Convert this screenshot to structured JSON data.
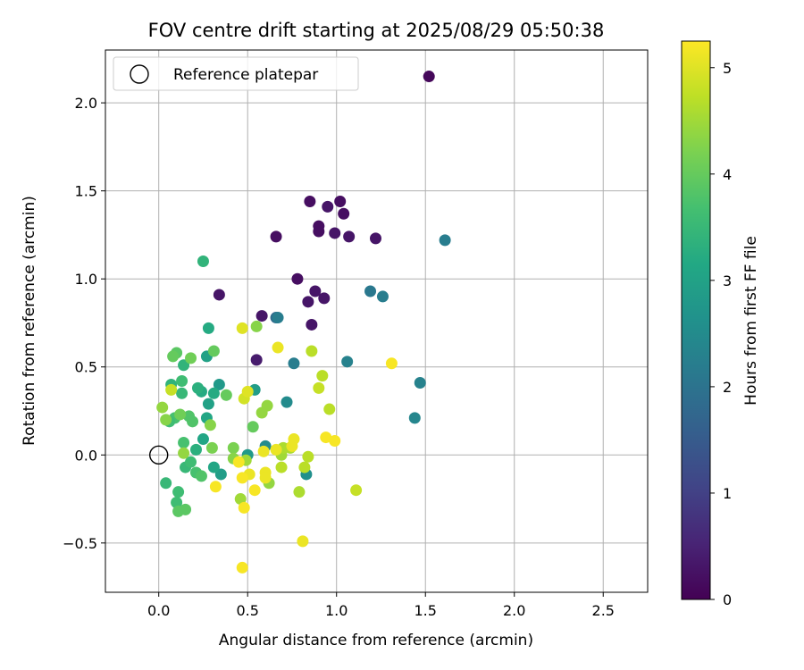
{
  "chart_data": {
    "type": "scatter",
    "title": "FOV centre drift starting at 2025/08/29 05:50:38",
    "xlabel": "Angular distance from reference (arcmin)",
    "ylabel": "Rotation from reference (arcmin)",
    "xlim": [
      -0.3,
      2.75
    ],
    "ylim": [
      -0.78,
      2.3
    ],
    "xticks": [
      0.0,
      0.5,
      1.0,
      1.5,
      2.0,
      2.5
    ],
    "xtick_labels": [
      "0.0",
      "0.5",
      "1.0",
      "1.5",
      "2.0",
      "2.5"
    ],
    "yticks": [
      -0.5,
      0.0,
      0.5,
      1.0,
      1.5,
      2.0
    ],
    "ytick_labels": [
      "−0.5",
      "0.0",
      "0.5",
      "1.0",
      "1.5",
      "2.0"
    ],
    "grid": true,
    "legend": {
      "placement": "upper-left",
      "entries": [
        "Reference platepar"
      ]
    },
    "reference_point": {
      "x": 0.0,
      "y": 0.0
    },
    "colorbar": {
      "label": "Hours from first FF file",
      "range": [
        0,
        5.25
      ],
      "ticks": [
        0,
        1,
        2,
        3,
        4,
        5
      ],
      "tick_labels": [
        "0",
        "1",
        "2",
        "3",
        "4",
        "5"
      ],
      "colormap": "viridis"
    },
    "points": [
      {
        "x": 1.52,
        "y": 2.15,
        "c": 0.1
      },
      {
        "x": 0.85,
        "y": 1.44,
        "c": 0.2
      },
      {
        "x": 1.02,
        "y": 1.44,
        "c": 0.2
      },
      {
        "x": 0.95,
        "y": 1.41,
        "c": 0.3
      },
      {
        "x": 1.04,
        "y": 1.37,
        "c": 0.2
      },
      {
        "x": 0.9,
        "y": 1.3,
        "c": 0.2
      },
      {
        "x": 0.9,
        "y": 1.27,
        "c": 0.2
      },
      {
        "x": 0.99,
        "y": 1.26,
        "c": 0.3
      },
      {
        "x": 0.66,
        "y": 1.24,
        "c": 0.2
      },
      {
        "x": 1.07,
        "y": 1.24,
        "c": 0.3
      },
      {
        "x": 1.22,
        "y": 1.23,
        "c": 0.3
      },
      {
        "x": 1.61,
        "y": 1.22,
        "c": 2.2
      },
      {
        "x": 0.78,
        "y": 1.0,
        "c": 0.2
      },
      {
        "x": 1.19,
        "y": 0.93,
        "c": 2.1
      },
      {
        "x": 0.88,
        "y": 0.93,
        "c": 0.3
      },
      {
        "x": 1.26,
        "y": 0.9,
        "c": 2.2
      },
      {
        "x": 0.34,
        "y": 0.91,
        "c": 0.3
      },
      {
        "x": 0.93,
        "y": 0.89,
        "c": 0.3
      },
      {
        "x": 0.84,
        "y": 0.87,
        "c": 0.3
      },
      {
        "x": 0.58,
        "y": 0.79,
        "c": 0.3
      },
      {
        "x": 0.66,
        "y": 0.78,
        "c": 1.8
      },
      {
        "x": 0.67,
        "y": 0.78,
        "c": 2.2
      },
      {
        "x": 0.86,
        "y": 0.74,
        "c": 0.3
      },
      {
        "x": 0.55,
        "y": 0.54,
        "c": 0.4
      },
      {
        "x": 0.76,
        "y": 0.52,
        "c": 2.2
      },
      {
        "x": 1.06,
        "y": 0.53,
        "c": 2.3
      },
      {
        "x": 1.47,
        "y": 0.41,
        "c": 2.3
      },
      {
        "x": 1.44,
        "y": 0.21,
        "c": 2.4
      },
      {
        "x": 0.72,
        "y": 0.3,
        "c": 2.5
      },
      {
        "x": 0.6,
        "y": 0.05,
        "c": 2.5
      },
      {
        "x": 0.83,
        "y": -0.11,
        "c": 2.6
      },
      {
        "x": 0.5,
        "y": 0.0,
        "c": 2.8
      },
      {
        "x": 0.34,
        "y": 0.4,
        "c": 2.8
      },
      {
        "x": 0.35,
        "y": -0.11,
        "c": 2.9
      },
      {
        "x": 0.54,
        "y": 0.37,
        "c": 2.9
      },
      {
        "x": 0.27,
        "y": 0.56,
        "c": 3.0
      },
      {
        "x": 0.28,
        "y": 0.29,
        "c": 3.0
      },
      {
        "x": 0.27,
        "y": 0.21,
        "c": 3.1
      },
      {
        "x": 0.31,
        "y": -0.07,
        "c": 3.1
      },
      {
        "x": 0.25,
        "y": 0.09,
        "c": 3.1
      },
      {
        "x": 0.28,
        "y": 0.72,
        "c": 3.2
      },
      {
        "x": 0.31,
        "y": 0.35,
        "c": 3.2
      },
      {
        "x": 0.24,
        "y": 0.36,
        "c": 3.2
      },
      {
        "x": 0.22,
        "y": 0.38,
        "c": 3.3
      },
      {
        "x": 0.21,
        "y": 0.03,
        "c": 3.3
      },
      {
        "x": 0.25,
        "y": 1.1,
        "c": 3.4
      },
      {
        "x": 0.14,
        "y": 0.51,
        "c": 3.4
      },
      {
        "x": 0.07,
        "y": 0.4,
        "c": 3.4
      },
      {
        "x": 0.13,
        "y": 0.35,
        "c": 3.5
      },
      {
        "x": 0.15,
        "y": -0.07,
        "c": 3.5
      },
      {
        "x": 0.04,
        "y": -0.16,
        "c": 3.5
      },
      {
        "x": 0.11,
        "y": -0.21,
        "c": 3.6
      },
      {
        "x": 0.1,
        "y": -0.27,
        "c": 3.6
      },
      {
        "x": 0.09,
        "y": 0.21,
        "c": 3.7
      },
      {
        "x": 0.13,
        "y": 0.42,
        "c": 3.6
      },
      {
        "x": 0.06,
        "y": 0.19,
        "c": 3.6
      },
      {
        "x": 0.18,
        "y": -0.04,
        "c": 3.6
      },
      {
        "x": 0.21,
        "y": -0.1,
        "c": 3.7
      },
      {
        "x": 0.14,
        "y": 0.07,
        "c": 3.7
      },
      {
        "x": 0.17,
        "y": 0.22,
        "c": 3.8
      },
      {
        "x": 0.19,
        "y": 0.19,
        "c": 3.8
      },
      {
        "x": 0.24,
        "y": -0.12,
        "c": 3.8
      },
      {
        "x": 0.11,
        "y": -0.32,
        "c": 3.9
      },
      {
        "x": 0.15,
        "y": -0.31,
        "c": 3.9
      },
      {
        "x": 0.1,
        "y": 0.58,
        "c": 3.9
      },
      {
        "x": 0.08,
        "y": 0.56,
        "c": 4.0
      },
      {
        "x": 0.31,
        "y": 0.59,
        "c": 4.0
      },
      {
        "x": 0.53,
        "y": 0.16,
        "c": 4.0
      },
      {
        "x": 0.38,
        "y": 0.34,
        "c": 4.0
      },
      {
        "x": 0.18,
        "y": 0.55,
        "c": 4.1
      },
      {
        "x": 0.12,
        "y": 0.23,
        "c": 4.1
      },
      {
        "x": 0.3,
        "y": 0.04,
        "c": 4.2
      },
      {
        "x": 0.42,
        "y": 0.04,
        "c": 4.2
      },
      {
        "x": 0.55,
        "y": 0.73,
        "c": 4.3
      },
      {
        "x": 0.42,
        "y": -0.02,
        "c": 4.3
      },
      {
        "x": 0.29,
        "y": 0.17,
        "c": 4.3
      },
      {
        "x": 0.14,
        "y": 0.01,
        "c": 4.4
      },
      {
        "x": 0.02,
        "y": 0.27,
        "c": 4.4
      },
      {
        "x": 0.04,
        "y": 0.2,
        "c": 4.3
      },
      {
        "x": 0.61,
        "y": 0.28,
        "c": 4.4
      },
      {
        "x": 0.58,
        "y": 0.24,
        "c": 4.4
      },
      {
        "x": 0.62,
        "y": -0.16,
        "c": 4.4
      },
      {
        "x": 0.49,
        "y": -0.03,
        "c": 4.5
      },
      {
        "x": 0.46,
        "y": -0.25,
        "c": 4.5
      },
      {
        "x": 0.69,
        "y": 0.0,
        "c": 4.5
      },
      {
        "x": 0.7,
        "y": 0.04,
        "c": 4.6
      },
      {
        "x": 0.74,
        "y": 0.04,
        "c": 4.6
      },
      {
        "x": 0.79,
        "y": -0.21,
        "c": 4.6
      },
      {
        "x": 0.69,
        "y": -0.07,
        "c": 4.7
      },
      {
        "x": 0.82,
        "y": -0.07,
        "c": 4.7
      },
      {
        "x": 0.84,
        "y": -0.01,
        "c": 4.7
      },
      {
        "x": 0.86,
        "y": 0.59,
        "c": 4.7
      },
      {
        "x": 0.92,
        "y": 0.45,
        "c": 4.7
      },
      {
        "x": 0.9,
        "y": 0.38,
        "c": 4.8
      },
      {
        "x": 0.96,
        "y": 0.26,
        "c": 4.7
      },
      {
        "x": 1.11,
        "y": -0.2,
        "c": 4.8
      },
      {
        "x": 0.07,
        "y": 0.37,
        "c": 4.8
      },
      {
        "x": 0.47,
        "y": 0.72,
        "c": 5.0
      },
      {
        "x": 0.48,
        "y": 0.32,
        "c": 4.9
      },
      {
        "x": 0.5,
        "y": 0.36,
        "c": 5.0
      },
      {
        "x": 0.67,
        "y": 0.61,
        "c": 5.1
      },
      {
        "x": 0.59,
        "y": 0.02,
        "c": 5.1
      },
      {
        "x": 0.6,
        "y": -0.1,
        "c": 5.1
      },
      {
        "x": 0.6,
        "y": -0.13,
        "c": 5.1
      },
      {
        "x": 0.51,
        "y": -0.11,
        "c": 5.1
      },
      {
        "x": 0.47,
        "y": -0.13,
        "c": 5.2
      },
      {
        "x": 0.54,
        "y": -0.2,
        "c": 5.2
      },
      {
        "x": 0.48,
        "y": -0.3,
        "c": 5.2
      },
      {
        "x": 0.32,
        "y": -0.18,
        "c": 5.2
      },
      {
        "x": 0.45,
        "y": -0.04,
        "c": 5.2
      },
      {
        "x": 0.47,
        "y": -0.64,
        "c": 5.2
      },
      {
        "x": 0.81,
        "y": -0.49,
        "c": 5.1
      },
      {
        "x": 0.75,
        "y": 0.05,
        "c": 5.1
      },
      {
        "x": 0.76,
        "y": 0.09,
        "c": 5.1
      },
      {
        "x": 0.66,
        "y": 0.03,
        "c": 5.1
      },
      {
        "x": 0.94,
        "y": 0.1,
        "c": 5.2
      },
      {
        "x": 0.99,
        "y": 0.08,
        "c": 5.2
      },
      {
        "x": 1.31,
        "y": 0.52,
        "c": 5.2
      }
    ]
  }
}
